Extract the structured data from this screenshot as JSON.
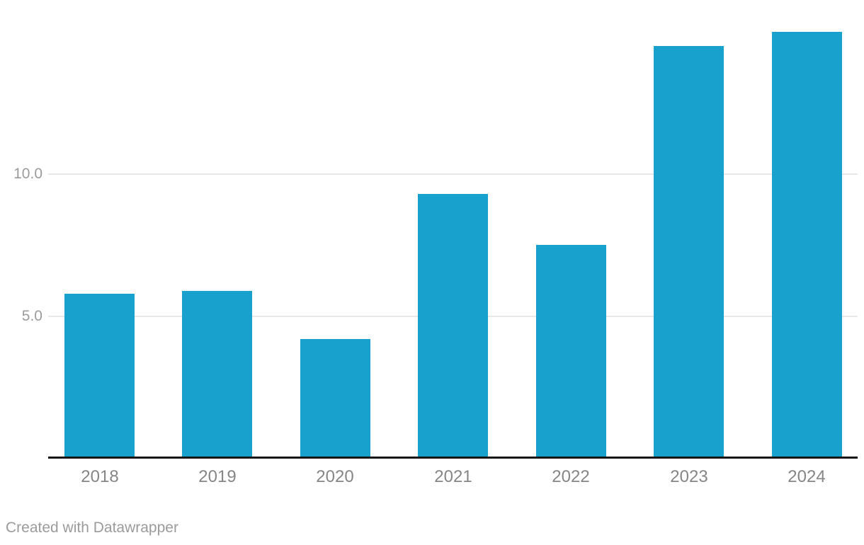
{
  "chart_data": {
    "type": "bar",
    "title": "",
    "xlabel": "",
    "ylabel": "",
    "categories": [
      "2018",
      "2019",
      "2020",
      "2021",
      "2022",
      "2023",
      "2024"
    ],
    "values": [
      5.8,
      5.9,
      4.2,
      9.3,
      7.5,
      14.5,
      15.0
    ],
    "ylim": [
      0,
      15.2
    ],
    "yticks": [
      5.0,
      10.0
    ],
    "ytick_labels": [
      "5.0",
      "10.0"
    ],
    "grid": true,
    "legend": "none",
    "bar_color": "#18a1cc"
  },
  "colors": {
    "bar": "#18a1cc",
    "gridline": "#e8e8e8",
    "axis_line": "#161616",
    "x_tick_label": "#868686",
    "y_tick_label": "#9b9b9b",
    "attribution": "#9b9b9b",
    "background": "#ffffff"
  },
  "footer": {
    "attribution": "Created with Datawrapper"
  }
}
